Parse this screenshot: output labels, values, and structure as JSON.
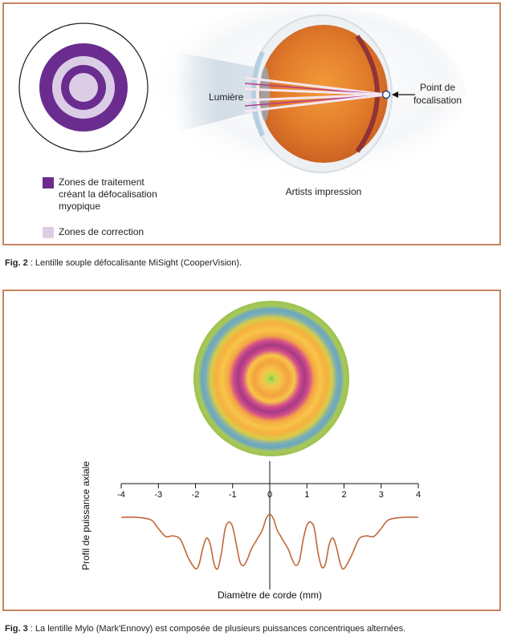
{
  "fig2": {
    "labels": {
      "light": "Lumière",
      "focal_point": "Point de\nfocalisation",
      "artist": "Artists impression"
    },
    "legend": {
      "treatment": "Zones de traitement\ncréant la défocalisation\nmyopique",
      "correction": "Zones de correction",
      "treatment_color": "#6b2c8f",
      "correction_color": "#dccde6"
    },
    "caption": {
      "prefix": "Fig. 2",
      "text": " : Lentille souple défocalisante MiSight (CooperVision)."
    }
  },
  "fig3": {
    "ylabel": "Profil de puissance axiale",
    "xlabel": "Diamètre de corde (mm)",
    "tick_labels": [
      "-4",
      "-3",
      "-2",
      "-1",
      "0",
      "1",
      "2",
      "3",
      "4"
    ],
    "caption": {
      "prefix": "Fig. 3",
      "text": " : La lentille Mylo (Mark'Ennovy) est composée de plusieurs puissances concentriques alternées."
    }
  },
  "chart_data": {
    "type": "line",
    "title": "",
    "xlabel": "Diamètre de corde (mm)",
    "ylabel": "Profil de puissance axiale",
    "xlim": [
      -4,
      4
    ],
    "x": [
      -4,
      -3.6,
      -3.2,
      -3.0,
      -2.8,
      -2.6,
      -2.4,
      -2.2,
      -2.0,
      -1.9,
      -1.8,
      -1.7,
      -1.6,
      -1.5,
      -1.4,
      -1.3,
      -1.2,
      -1.1,
      -1.0,
      -0.9,
      -0.8,
      -0.7,
      -0.6,
      -0.5,
      -0.4,
      -0.3,
      -0.2,
      -0.1,
      0,
      0.1,
      0.2,
      0.3,
      0.4,
      0.5,
      0.6,
      0.7,
      0.8,
      0.9,
      1.0,
      1.1,
      1.2,
      1.3,
      1.4,
      1.5,
      1.6,
      1.7,
      1.8,
      1.9,
      2.0,
      2.2,
      2.4,
      2.6,
      2.8,
      3.0,
      3.2,
      3.6,
      4
    ],
    "y": [
      0.9,
      0.9,
      0.82,
      0.55,
      0.3,
      0.32,
      0.2,
      -0.35,
      -0.7,
      -0.55,
      -0.05,
      0.25,
      0.05,
      -0.55,
      -0.7,
      -0.2,
      0.55,
      0.75,
      0.6,
      0.05,
      -0.5,
      -0.6,
      -0.4,
      -0.1,
      0.1,
      0.3,
      0.5,
      0.85,
      1.0,
      0.85,
      0.5,
      0.3,
      0.1,
      -0.1,
      -0.4,
      -0.6,
      -0.45,
      0.2,
      0.65,
      0.75,
      0.55,
      -0.2,
      -0.65,
      -0.55,
      0.05,
      0.25,
      -0.05,
      -0.55,
      -0.7,
      -0.3,
      0.22,
      0.32,
      0.3,
      0.55,
      0.82,
      0.9,
      0.9
    ],
    "line_color": "#c0673a",
    "grid": false
  }
}
